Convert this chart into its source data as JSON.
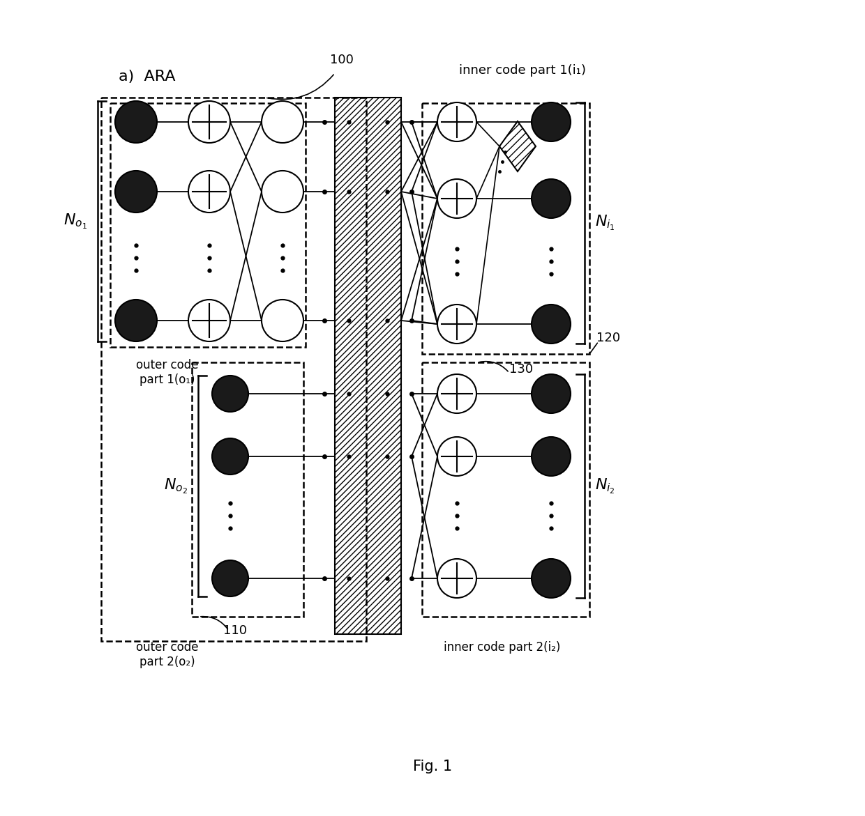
{
  "bg_color": "#ffffff",
  "fig_caption": "Fig. 1",
  "label_ara": "a)  ARA",
  "label_inner1": "inner code part 1(i₁)",
  "label_inner2": "inner code part 2(i₂)",
  "label_outer1": "outer code\npart 1(o₁)",
  "label_outer2": "outer code\npart 2(o₂)",
  "ref100": "100",
  "ref110": "110",
  "ref120": "120",
  "ref130": "130",
  "No1": "N",
  "No2": "N",
  "Ni1": "N",
  "Ni2": "N"
}
